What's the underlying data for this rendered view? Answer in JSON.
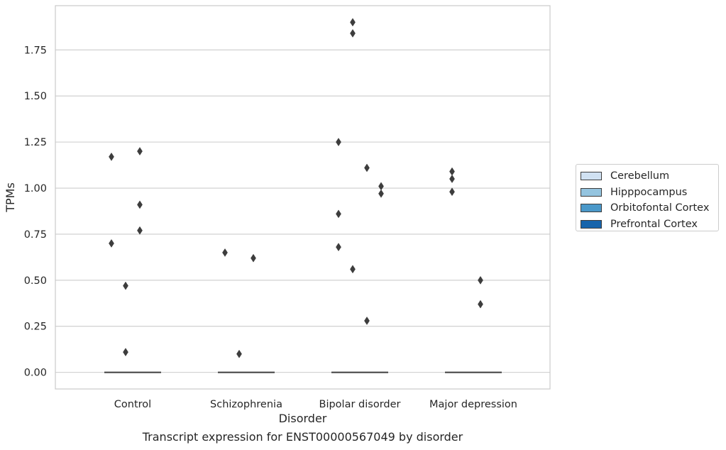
{
  "chart_data": {
    "type": "box",
    "xlabel": "Disorder",
    "ylabel": "TPMs",
    "caption": "Transcript expression for ENST00000567049 by disorder",
    "ylim": [
      -0.09,
      1.99
    ],
    "yticks": [
      "0.00",
      "0.25",
      "0.50",
      "0.75",
      "1.00",
      "1.25",
      "1.50",
      "1.75"
    ],
    "categories": [
      "Control",
      "Schizophrenia",
      "Bipolar disorder",
      "Major depression"
    ],
    "grid": "y",
    "legend_position": "right",
    "colors": {
      "Cerebellum": "#d0e1f2",
      "Hipppocampus": "#94c4df",
      "Orbitofontal Cortex": "#4a98c9",
      "Prefrontal Cortex": "#1764ab",
      "outlier": "#3d3d3d"
    },
    "series": [
      {
        "name": "Cerebellum",
        "median": [
          0,
          0,
          0,
          0
        ],
        "outliers": [
          [
            1.17,
            0.7
          ],
          [
            0.65
          ],
          [
            1.25,
            0.86,
            0.68
          ],
          [
            1.09,
            1.05,
            0.98
          ]
        ]
      },
      {
        "name": "Hipppocampus",
        "median": [
          0,
          0,
          0,
          0
        ],
        "outliers": [
          [
            0.47,
            0.11
          ],
          [
            0.1
          ],
          [
            1.9,
            1.84,
            0.56
          ],
          []
        ]
      },
      {
        "name": "Orbitofontal Cortex",
        "median": [
          0,
          0,
          0,
          0
        ],
        "outliers": [
          [
            1.2,
            0.91,
            0.77
          ],
          [
            0.62
          ],
          [
            1.11,
            0.28
          ],
          [
            0.5,
            0.37
          ]
        ]
      },
      {
        "name": "Prefrontal Cortex",
        "median": [
          0,
          0,
          0,
          0
        ],
        "outliers": [
          [],
          [],
          [
            1.01,
            0.97
          ],
          []
        ]
      }
    ]
  }
}
